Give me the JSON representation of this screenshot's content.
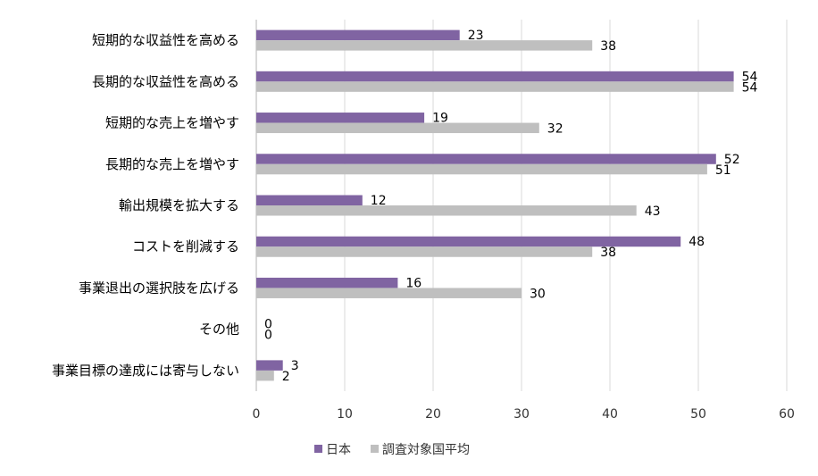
{
  "chart_data": {
    "type": "bar",
    "orientation": "horizontal",
    "title": "",
    "xlabel": "",
    "ylabel": "",
    "xlim": [
      0,
      60
    ],
    "xticks": [
      "0",
      "10",
      "20",
      "30",
      "40",
      "50",
      "60"
    ],
    "grid": true,
    "legend_position": "bottom",
    "categories": [
      "短期的な収益性を高める",
      "長期的な収益性を高める",
      "短期的な売上を増やす",
      "長期的な売上を増やす",
      "輸出規模を拡大する",
      "コストを削減する",
      "事業退出の選択肢を広げる",
      "その他",
      "事業目標の達成には寄与しない"
    ],
    "series": [
      {
        "name": "日本",
        "color": "#8064A2",
        "values": [
          23,
          54,
          19,
          52,
          12,
          48,
          16,
          0,
          3
        ]
      },
      {
        "name": "調査対象国平均",
        "color": "#BFBFBF",
        "values": [
          38,
          54,
          32,
          51,
          43,
          38,
          30,
          0,
          2
        ]
      }
    ]
  }
}
